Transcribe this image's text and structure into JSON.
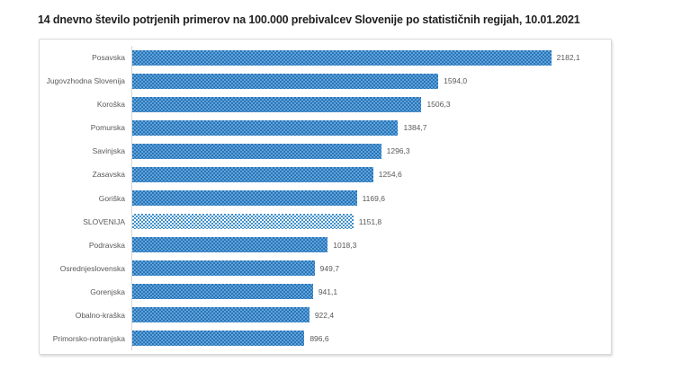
{
  "title": "14 dnevno število potrjenih primerov na 100.000  prebivalcev Slovenije po statističnih regijah, 10.01.2021",
  "chart_data": {
    "type": "bar",
    "orientation": "horizontal",
    "title": "14 dnevno število potrjenih primerov na 100.000  prebivalcev Slovenije po statističnih regijah, 10.01.2021",
    "categories": [
      "Posavska",
      "Jugovzhodna Slovenija",
      "Koroška",
      "Pomurska",
      "Savinjska",
      "Zasavska",
      "Goriška",
      "SLOVENIJA",
      "Podravska",
      "Osrednjeslovenska",
      "Gorenjska",
      "Obalno-kraška",
      "Primorsko-notranjska"
    ],
    "values": [
      2182.1,
      1594.0,
      1506.3,
      1384.7,
      1296.3,
      1254.6,
      1169.6,
      1151.8,
      1018.3,
      949.7,
      941.1,
      922.4,
      896.6
    ],
    "value_labels": [
      "2182,1",
      "1594,0",
      "1506,3",
      "1384,7",
      "1296,3",
      "1254,6",
      "1169,6",
      "1151,8",
      "1018,3",
      "949,7",
      "941,1",
      "922,4",
      "896,6"
    ],
    "highlight_category": "SLOVENIJA",
    "xlim": [
      0,
      2493
    ],
    "xlabel": "",
    "ylabel": "",
    "grid": false,
    "legend": false,
    "data_labels": "end-of-bar",
    "colors": {
      "bar_pattern_dark": "#2b74b5",
      "bar_pattern_light": "#5ea3dc",
      "highlight_pattern_blue": "#3f90cd",
      "highlight_background": "#ffffff",
      "label_text": "#595959",
      "title_text": "#1f1f1f",
      "box_border": "#d9d9d9"
    }
  }
}
